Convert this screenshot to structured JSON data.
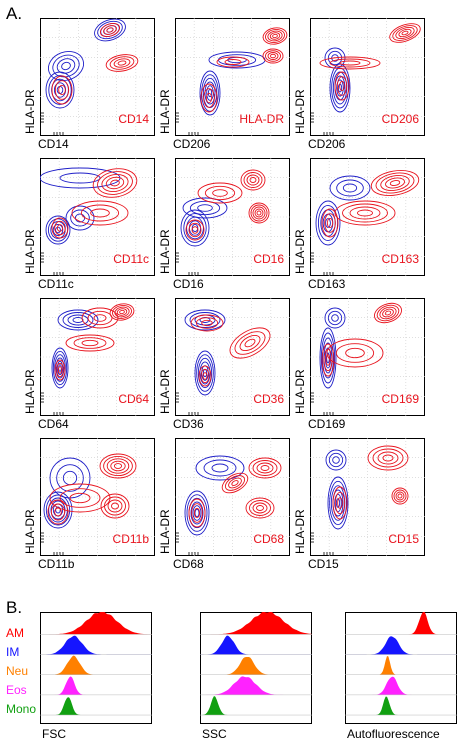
{
  "panel_a_label": "A.",
  "panel_b_label": "B.",
  "contour_colors": {
    "am_red": "#e8141e",
    "im_blue": "#1f1fc8"
  },
  "contour_grid": {
    "y_axis_label": "HLA-DR",
    "plots": [
      {
        "x_label": "CD14",
        "marker": "CD14",
        "shape": "c1"
      },
      {
        "x_label": "CD206",
        "marker": "HLA-DR",
        "shape": "c2"
      },
      {
        "x_label": "CD206",
        "marker": "CD206",
        "shape": "c3"
      },
      {
        "x_label": "CD11c",
        "marker": "CD11c",
        "shape": "c4"
      },
      {
        "x_label": "CD16",
        "marker": "CD16",
        "shape": "c5"
      },
      {
        "x_label": "CD163",
        "marker": "CD163",
        "shape": "c6"
      },
      {
        "x_label": "CD64",
        "marker": "CD64",
        "shape": "c7"
      },
      {
        "x_label": "CD36",
        "marker": "CD36",
        "shape": "c8"
      },
      {
        "x_label": "CD169",
        "marker": "CD169",
        "shape": "c9"
      },
      {
        "x_label": "CD11b",
        "marker": "CD11b",
        "shape": "c10"
      },
      {
        "x_label": "CD68",
        "marker": "CD68",
        "shape": "c11"
      },
      {
        "x_label": "CD15",
        "marker": "CD15",
        "shape": "c12"
      }
    ]
  },
  "histograms": {
    "legend": [
      {
        "label": "AM",
        "color": "#ff0000"
      },
      {
        "label": "IM",
        "color": "#1515ff"
      },
      {
        "label": "Neu",
        "color": "#ff8000"
      },
      {
        "label": "Eos",
        "color": "#ff22ff"
      },
      {
        "label": "Mono",
        "color": "#11a011"
      }
    ],
    "plots": [
      {
        "x_label": "FSC"
      },
      {
        "x_label": "SSC"
      },
      {
        "x_label": "Autofluorescence"
      }
    ]
  }
}
